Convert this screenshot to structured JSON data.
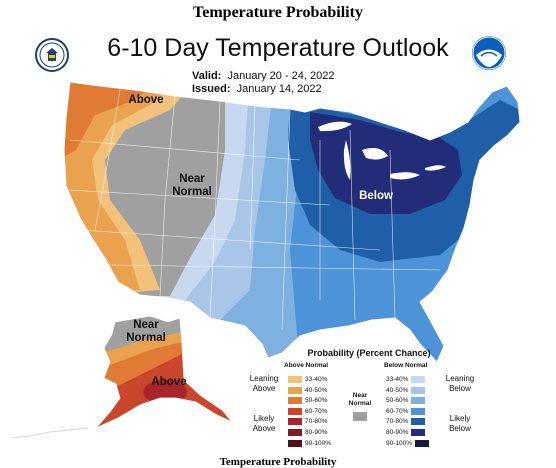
{
  "page": {
    "heading": "Temperature Probability",
    "title": "6-10 Day Temperature Outlook",
    "valid_label": "Valid:",
    "valid_value": "January 20 - 24, 2022",
    "issued_label": "Issued:",
    "issued_value": "January 14, 2022",
    "footer": "Temperature Probability"
  },
  "map": {
    "labels": {
      "above_northwest": "Above",
      "near_normal_west": "Near\nNormal",
      "below_east": "Below",
      "near_normal_alaska": "Near\nNormal",
      "above_alaska": "Above"
    }
  },
  "legend": {
    "title": "Probability (Percent Chance)",
    "above_header": "Above Normal",
    "below_header": "Below Normal",
    "near_normal": "Near\nNormal",
    "leaning_above": "Leaning\nAbove",
    "likely_above": "Likely\nAbove",
    "leaning_below": "Leaning\nBelow",
    "likely_below": "Likely\nBelow",
    "ranges": [
      "33-40%",
      "40-50%",
      "50-60%",
      "60-70%",
      "70-80%",
      "80-90%",
      "90-100%"
    ],
    "above_colors": [
      "#f2c27a",
      "#eaa24e",
      "#e07a35",
      "#c9462a",
      "#a8252a",
      "#801b25",
      "#541018"
    ],
    "below_colors": [
      "#c8d9ef",
      "#a8c6e8",
      "#7eb0e0",
      "#4d93d8",
      "#1e5fa8",
      "#232c78",
      "#1a1645"
    ],
    "near_color": "#a0a0a0"
  }
}
